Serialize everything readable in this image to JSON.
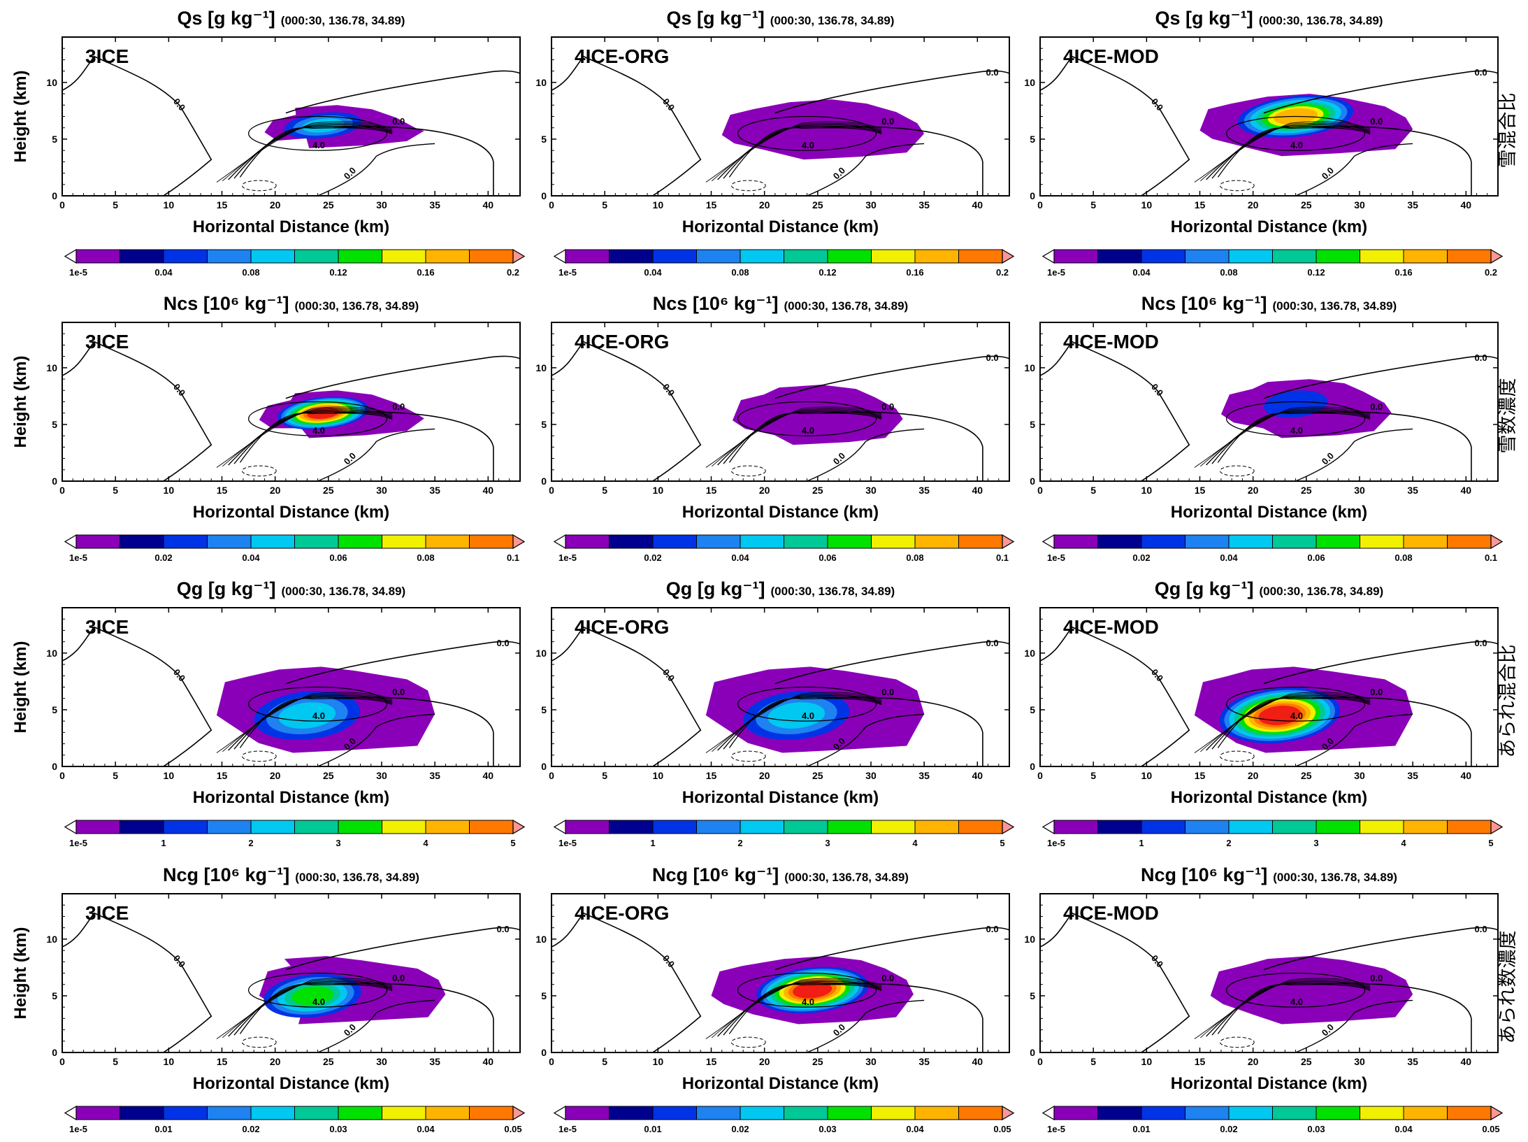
{
  "figure": {
    "x_axis_label": "Horizontal Distance (km)",
    "y_axis_label": "Height (km)",
    "panel_time_info": "(000:30, 136.78, 34.89)",
    "experiments": [
      "3ICE",
      "4ICE-ORG",
      "4ICE-MOD"
    ],
    "colorbar_colors": [
      "#8a00b8",
      "#00008f",
      "#0033e6",
      "#1e82f0",
      "#00c8f0",
      "#00c896",
      "#00e100",
      "#f0f000",
      "#ffb400",
      "#ff7800",
      "#f01e14",
      "#ff9696"
    ],
    "contour_labels": [
      "0.0",
      "4.0"
    ]
  },
  "chart_data": [
    {
      "row": 0,
      "col": 0,
      "type": "heatmap",
      "variable": "Qs",
      "units": "[g kg⁻¹]",
      "experiment": "3ICE",
      "row_label": "雪混合比",
      "xlim": [
        0,
        43
      ],
      "ylim": [
        0,
        14
      ],
      "xticks": [
        0,
        5,
        10,
        15,
        20,
        25,
        30,
        35,
        40
      ],
      "yticks": [
        0,
        5,
        10
      ],
      "colorbar_ticks": [
        "1e-5",
        "0.04",
        "0.08",
        "0.12",
        "0.16",
        "0.2"
      ],
      "colorbar_range": [
        0,
        0.2
      ],
      "core": {
        "center_km": [
          24.5,
          6.2
        ],
        "peak_value": 0.08,
        "extent_km": [
          19,
          34,
          4.2,
          8
        ]
      }
    },
    {
      "row": 0,
      "col": 1,
      "type": "heatmap",
      "variable": "Qs",
      "units": "[g kg⁻¹]",
      "experiment": "4ICE-ORG",
      "row_label": "",
      "xlim": [
        0,
        43
      ],
      "ylim": [
        0,
        14
      ],
      "xticks": [
        0,
        5,
        10,
        15,
        20,
        25,
        30,
        35,
        40
      ],
      "yticks": [
        0,
        5,
        10
      ],
      "colorbar_ticks": [
        "1e-5",
        "0.04",
        "0.08",
        "0.12",
        "0.16",
        "0.2"
      ],
      "colorbar_range": [
        0,
        0.2
      ],
      "core": {
        "center_km": [
          25,
          5.5
        ],
        "peak_value": 0.01,
        "extent_km": [
          16,
          35,
          3.2,
          8.5
        ]
      }
    },
    {
      "row": 0,
      "col": 2,
      "type": "heatmap",
      "variable": "Qs",
      "units": "[g kg⁻¹]",
      "experiment": "4ICE-MOD",
      "row_label": "雪混合比",
      "xlim": [
        0,
        43
      ],
      "ylim": [
        0,
        14
      ],
      "xticks": [
        0,
        5,
        10,
        15,
        20,
        25,
        30,
        35,
        40
      ],
      "yticks": [
        0,
        5,
        10
      ],
      "colorbar_ticks": [
        "1e-5",
        "0.04",
        "0.08",
        "0.12",
        "0.16",
        "0.2"
      ],
      "colorbar_range": [
        0,
        0.2
      ],
      "core": {
        "center_km": [
          24,
          7
        ],
        "peak_value": 0.16,
        "extent_km": [
          15,
          35,
          3.5,
          9
        ]
      }
    },
    {
      "row": 1,
      "col": 0,
      "type": "heatmap",
      "variable": "Ncs",
      "units": "[10⁶ kg⁻¹]",
      "experiment": "3ICE",
      "row_label": "雪数濃度",
      "xlim": [
        0,
        43
      ],
      "ylim": [
        0,
        14
      ],
      "xticks": [
        0,
        5,
        10,
        15,
        20,
        25,
        30,
        35,
        40
      ],
      "yticks": [
        0,
        5,
        10
      ],
      "colorbar_ticks": [
        "1e-5",
        "0.02",
        "0.04",
        "0.06",
        "0.08",
        "0.1"
      ],
      "colorbar_range": [
        0,
        0.1
      ],
      "core": {
        "center_km": [
          24.5,
          6
        ],
        "peak_value": 0.1,
        "extent_km": [
          18.5,
          34,
          3.8,
          8
        ]
      }
    },
    {
      "row": 1,
      "col": 1,
      "type": "heatmap",
      "variable": "Ncs",
      "units": "[10⁶ kg⁻¹]",
      "experiment": "4ICE-ORG",
      "row_label": "",
      "xlim": [
        0,
        43
      ],
      "ylim": [
        0,
        14
      ],
      "xticks": [
        0,
        5,
        10,
        15,
        20,
        25,
        30,
        35,
        40
      ],
      "yticks": [
        0,
        5,
        10
      ],
      "colorbar_ticks": [
        "1e-5",
        "0.02",
        "0.04",
        "0.06",
        "0.08",
        "0.1"
      ],
      "colorbar_range": [
        0,
        0.1
      ],
      "core": {
        "center_km": [
          24,
          5.5
        ],
        "peak_value": 0.005,
        "extent_km": [
          17,
          33,
          3.2,
          8.5
        ]
      }
    },
    {
      "row": 1,
      "col": 2,
      "type": "heatmap",
      "variable": "Ncs",
      "units": "[10⁶ kg⁻¹]",
      "experiment": "4ICE-MOD",
      "row_label": "雪数濃度",
      "xlim": [
        0,
        43
      ],
      "ylim": [
        0,
        14
      ],
      "xticks": [
        0,
        5,
        10,
        15,
        20,
        25,
        30,
        35,
        40
      ],
      "yticks": [
        0,
        5,
        10
      ],
      "colorbar_ticks": [
        "1e-5",
        "0.02",
        "0.04",
        "0.06",
        "0.08",
        "0.1"
      ],
      "colorbar_range": [
        0,
        0.1
      ],
      "core": {
        "center_km": [
          24,
          6.8
        ],
        "peak_value": 0.02,
        "extent_km": [
          17,
          33,
          3.8,
          9
        ]
      }
    },
    {
      "row": 2,
      "col": 0,
      "type": "heatmap",
      "variable": "Qg",
      "units": "[g kg⁻¹]",
      "experiment": "3ICE",
      "row_label": "あられ混合比",
      "xlim": [
        0,
        43
      ],
      "ylim": [
        0,
        14
      ],
      "xticks": [
        0,
        5,
        10,
        15,
        20,
        25,
        30,
        35,
        40
      ],
      "yticks": [
        0,
        5,
        10
      ],
      "colorbar_ticks": [
        "1e-5",
        "1",
        "2",
        "3",
        "4",
        "5"
      ],
      "colorbar_range": [
        0,
        5
      ],
      "core": {
        "center_km": [
          23,
          4.5
        ],
        "peak_value": 1.7,
        "extent_km": [
          14.5,
          35,
          1.2,
          8.8
        ]
      }
    },
    {
      "row": 2,
      "col": 1,
      "type": "heatmap",
      "variable": "Qg",
      "units": "[g kg⁻¹]",
      "experiment": "4ICE-ORG",
      "row_label": "",
      "xlim": [
        0,
        43
      ],
      "ylim": [
        0,
        14
      ],
      "xticks": [
        0,
        5,
        10,
        15,
        20,
        25,
        30,
        35,
        40
      ],
      "yticks": [
        0,
        5,
        10
      ],
      "colorbar_ticks": [
        "1e-5",
        "1",
        "2",
        "3",
        "4",
        "5"
      ],
      "colorbar_range": [
        0,
        5
      ],
      "core": {
        "center_km": [
          23,
          4.5
        ],
        "peak_value": 1.7,
        "extent_km": [
          14.5,
          35,
          1.2,
          8.8
        ]
      }
    },
    {
      "row": 2,
      "col": 2,
      "type": "heatmap",
      "variable": "Qg",
      "units": "[g kg⁻¹]",
      "experiment": "4ICE-MOD",
      "row_label": "あられ混合比",
      "xlim": [
        0,
        43
      ],
      "ylim": [
        0,
        14
      ],
      "xticks": [
        0,
        5,
        10,
        15,
        20,
        25,
        30,
        35,
        40
      ],
      "yticks": [
        0,
        5,
        10
      ],
      "colorbar_ticks": [
        "1e-5",
        "1",
        "2",
        "3",
        "4",
        "5"
      ],
      "colorbar_range": [
        0,
        5
      ],
      "core": {
        "center_km": [
          22.5,
          4.5
        ],
        "peak_value": 4.6,
        "extent_km": [
          14.5,
          35,
          1.2,
          8.8
        ]
      }
    },
    {
      "row": 3,
      "col": 0,
      "type": "heatmap",
      "variable": "Ncg",
      "units": "[10⁶ kg⁻¹]",
      "experiment": "3ICE",
      "row_label": "あられ数濃度",
      "xlim": [
        0,
        43
      ],
      "ylim": [
        0,
        14
      ],
      "xticks": [
        0,
        5,
        10,
        15,
        20,
        25,
        30,
        35,
        40
      ],
      "yticks": [
        0,
        5,
        10
      ],
      "colorbar_ticks": [
        "1e-5",
        "0.01",
        "0.02",
        "0.03",
        "0.04",
        "0.05"
      ],
      "colorbar_range": [
        0,
        0.05
      ],
      "core": {
        "center_km": [
          23.5,
          5
        ],
        "peak_value": 0.028,
        "extent_km": [
          18.5,
          36,
          2.5,
          8.5
        ]
      }
    },
    {
      "row": 3,
      "col": 1,
      "type": "heatmap",
      "variable": "Ncg",
      "units": "[10⁶ kg⁻¹]",
      "experiment": "4ICE-ORG",
      "row_label": "",
      "xlim": [
        0,
        43
      ],
      "ylim": [
        0,
        14
      ],
      "xticks": [
        0,
        5,
        10,
        15,
        20,
        25,
        30,
        35,
        40
      ],
      "yticks": [
        0,
        5,
        10
      ],
      "colorbar_ticks": [
        "1e-5",
        "0.01",
        "0.02",
        "0.03",
        "0.04",
        "0.05"
      ],
      "colorbar_range": [
        0,
        0.05
      ],
      "core": {
        "center_km": [
          24.5,
          5.5
        ],
        "peak_value": 0.046,
        "extent_km": [
          15,
          34,
          2.5,
          8.5
        ]
      }
    },
    {
      "row": 3,
      "col": 2,
      "type": "heatmap",
      "variable": "Ncg",
      "units": "[10⁶ kg⁻¹]",
      "experiment": "4ICE-MOD",
      "row_label": "あられ数濃度",
      "xlim": [
        0,
        43
      ],
      "ylim": [
        0,
        14
      ],
      "xticks": [
        0,
        5,
        10,
        15,
        20,
        25,
        30,
        35,
        40
      ],
      "yticks": [
        0,
        5,
        10
      ],
      "colorbar_ticks": [
        "1e-5",
        "0.01",
        "0.02",
        "0.03",
        "0.04",
        "0.05"
      ],
      "colorbar_range": [
        0,
        0.05
      ],
      "core": {
        "center_km": [
          24,
          5
        ],
        "peak_value": 0.001,
        "extent_km": [
          16,
          35,
          2.5,
          8.5
        ]
      }
    }
  ]
}
